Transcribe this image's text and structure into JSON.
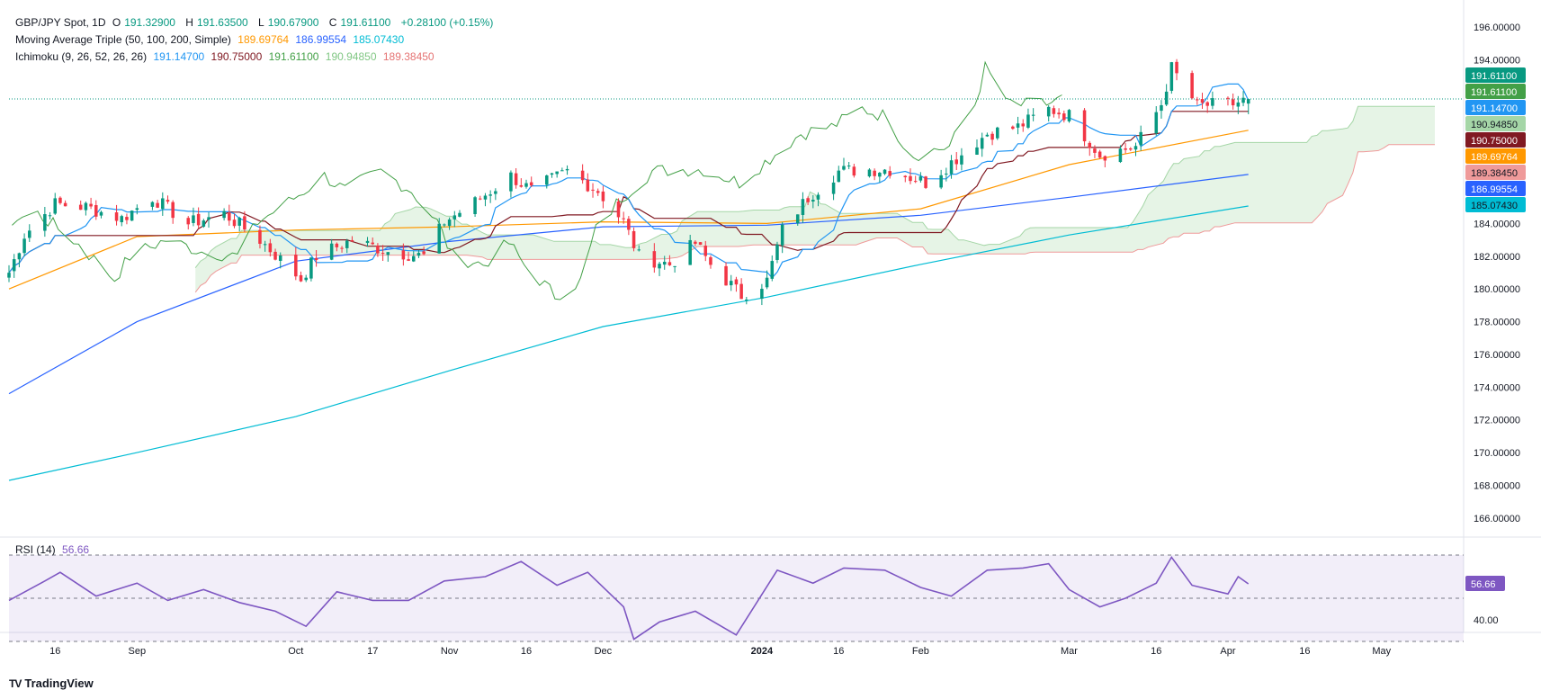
{
  "legend": {
    "symbol": "GBP/JPY Spot, 1D",
    "open_label": "O",
    "open": "191.32900",
    "high_label": "H",
    "high": "191.63500",
    "low_label": "L",
    "low": "190.67900",
    "close_label": "C",
    "close": "191.61100",
    "change": "+0.28100 (+0.15%)",
    "ma_title": "Moving Average Triple (50, 100, 200, Simple)",
    "ma50": "189.69764",
    "ma100": "186.99554",
    "ma200": "185.07430",
    "ich_title": "Ichimoku (9, 26, 52, 26, 26)",
    "ich_conv": "191.14700",
    "ich_base": "190.75000",
    "ich_lag": "191.61100",
    "ich_spanA": "190.94850",
    "ich_spanB": "189.38450",
    "rsi_title": "RSI (14)",
    "rsi_value": "56.66"
  },
  "colors": {
    "up": "#089981",
    "down": "#f23645",
    "ma50": "#ff9800",
    "ma100": "#2962ff",
    "ma200": "#00bcd4",
    "conv": "#2196f3",
    "base": "#801922",
    "lag": "#43a047",
    "spanA": "#a5d6a7",
    "spanB": "#ef9a9a",
    "rsi": "#7e57c2"
  },
  "brand": {
    "name": "TradingView",
    "logo": "TV"
  },
  "chart_data": [
    {
      "type": "candlestick",
      "title": "GBP/JPY Spot, 1D",
      "ylim": [
        165.0,
        197.0
      ],
      "y_ticks": [
        "196.00000",
        "194.00000",
        "192.00000",
        "190.00000",
        "188.00000",
        "186.00000",
        "184.00000",
        "182.00000",
        "180.00000",
        "178.00000",
        "176.00000",
        "174.00000",
        "172.00000",
        "170.00000",
        "168.00000",
        "166.00000"
      ],
      "x_ticks": [
        {
          "label": "16",
          "date": "2023-08-16"
        },
        {
          "label": "Sep",
          "date": "2023-09-01"
        },
        {
          "label": "Oct",
          "date": "2023-10-02"
        },
        {
          "label": "17",
          "date": "2023-10-17"
        },
        {
          "label": "Nov",
          "date": "2023-11-01"
        },
        {
          "label": "16",
          "date": "2023-11-16"
        },
        {
          "label": "Dec",
          "date": "2023-12-01"
        },
        {
          "label": "2024",
          "date": "2024-01-01"
        },
        {
          "label": "16",
          "date": "2024-01-16"
        },
        {
          "label": "Feb",
          "date": "2024-02-01"
        },
        {
          "label": "Mar",
          "date": "2024-03-01"
        },
        {
          "label": "16",
          "date": "2024-03-18"
        },
        {
          "label": "Apr",
          "date": "2024-04-01"
        },
        {
          "label": "16",
          "date": "2024-04-16"
        },
        {
          "label": "May",
          "date": "2024-05-01"
        }
      ],
      "close_anchors": [
        [
          "2023-08-07",
          181.0
        ],
        [
          "2023-08-10",
          183.3
        ],
        [
          "2023-08-16",
          185.2
        ],
        [
          "2023-08-22",
          185.0
        ],
        [
          "2023-08-29",
          184.3
        ],
        [
          "2023-09-04",
          185.6
        ],
        [
          "2023-09-11",
          184.0
        ],
        [
          "2023-09-18",
          184.6
        ],
        [
          "2023-09-25",
          183.0
        ],
        [
          "2023-09-29",
          181.8
        ],
        [
          "2023-10-03",
          180.6
        ],
        [
          "2023-10-06",
          182.0
        ],
        [
          "2023-10-13",
          183.0
        ],
        [
          "2023-10-20",
          182.3
        ],
        [
          "2023-10-27",
          182.0
        ],
        [
          "2023-10-31",
          184.1
        ],
        [
          "2023-11-06",
          185.3
        ],
        [
          "2023-11-13",
          186.9
        ],
        [
          "2023-11-17",
          186.0
        ],
        [
          "2023-11-24",
          187.2
        ],
        [
          "2023-11-30",
          186.0
        ],
        [
          "2023-12-05",
          184.1
        ],
        [
          "2023-12-08",
          182.0
        ],
        [
          "2023-12-14",
          181.5
        ],
        [
          "2023-12-19",
          182.8
        ],
        [
          "2023-12-22",
          181.5
        ],
        [
          "2023-12-28",
          179.6
        ],
        [
          "2024-01-02",
          180.5
        ],
        [
          "2024-01-05",
          183.6
        ],
        [
          "2024-01-10",
          185.6
        ],
        [
          "2024-01-16",
          187.2
        ],
        [
          "2024-01-22",
          187.3
        ],
        [
          "2024-01-26",
          187.3
        ],
        [
          "2024-02-02",
          186.5
        ],
        [
          "2024-02-08",
          188.0
        ],
        [
          "2024-02-14",
          189.5
        ],
        [
          "2024-02-20",
          189.9
        ],
        [
          "2024-02-26",
          191.0
        ],
        [
          "2024-03-01",
          190.6
        ],
        [
          "2024-03-07",
          188.2
        ],
        [
          "2024-03-14",
          188.7
        ],
        [
          "2024-03-19",
          191.3
        ],
        [
          "2024-03-21",
          193.5
        ],
        [
          "2024-03-26",
          191.2
        ],
        [
          "2024-04-02",
          191.3
        ],
        [
          "2024-04-05",
          191.6
        ]
      ],
      "last_ohlc": {
        "open": 191.329,
        "high": 191.635,
        "low": 190.679,
        "close": 191.611
      },
      "series": [
        {
          "name": "MA 50",
          "value": 189.69764,
          "points": [
            [
              "2023-08-07",
              180.0
            ],
            [
              "2023-09-01",
              183.2
            ],
            [
              "2023-10-02",
              183.6
            ],
            [
              "2023-11-01",
              183.8
            ],
            [
              "2023-12-01",
              184.1
            ],
            [
              "2024-01-02",
              184.0
            ],
            [
              "2024-02-01",
              184.9
            ],
            [
              "2024-03-01",
              187.6
            ],
            [
              "2024-04-05",
              189.7
            ]
          ]
        },
        {
          "name": "MA 100",
          "value": 186.99554,
          "points": [
            [
              "2023-08-07",
              173.6
            ],
            [
              "2023-09-01",
              178.0
            ],
            [
              "2023-10-02",
              181.7
            ],
            [
              "2023-11-01",
              182.9
            ],
            [
              "2023-12-01",
              183.8
            ],
            [
              "2024-01-02",
              183.9
            ],
            [
              "2024-02-01",
              184.5
            ],
            [
              "2024-03-01",
              185.6
            ],
            [
              "2024-04-05",
              187.0
            ]
          ]
        },
        {
          "name": "MA 200",
          "value": 185.0743,
          "points": [
            [
              "2023-08-07",
              168.3
            ],
            [
              "2023-09-01",
              170.0
            ],
            [
              "2023-10-02",
              172.2
            ],
            [
              "2023-11-01",
              175.0
            ],
            [
              "2023-12-01",
              177.7
            ],
            [
              "2024-01-02",
              179.5
            ],
            [
              "2024-02-01",
              181.5
            ],
            [
              "2024-03-01",
              183.3
            ],
            [
              "2024-04-05",
              185.07
            ]
          ]
        },
        {
          "name": "Conversion",
          "value": 191.147
        },
        {
          "name": "Base",
          "value": 190.75
        },
        {
          "name": "Lagging",
          "value": 191.611
        },
        {
          "name": "Span A",
          "value": 190.9485
        },
        {
          "name": "Span B",
          "value": 189.3845
        }
      ]
    },
    {
      "type": "line",
      "title": "RSI (14)",
      "ylim": [
        35,
        75
      ],
      "y_ticks": [
        "40.00"
      ],
      "levels": [
        70,
        50,
        30
      ],
      "last_value": 56.66,
      "points": [
        [
          "2023-08-07",
          49
        ],
        [
          "2023-08-14",
          58
        ],
        [
          "2023-08-17",
          62
        ],
        [
          "2023-08-24",
          51
        ],
        [
          "2023-09-01",
          57
        ],
        [
          "2023-09-07",
          49
        ],
        [
          "2023-09-14",
          54
        ],
        [
          "2023-09-21",
          48
        ],
        [
          "2023-09-28",
          44
        ],
        [
          "2023-10-04",
          37
        ],
        [
          "2023-10-10",
          53
        ],
        [
          "2023-10-17",
          49
        ],
        [
          "2023-10-24",
          49
        ],
        [
          "2023-10-31",
          58
        ],
        [
          "2023-11-08",
          60
        ],
        [
          "2023-11-15",
          67
        ],
        [
          "2023-11-22",
          56
        ],
        [
          "2023-11-28",
          62
        ],
        [
          "2023-12-05",
          46
        ],
        [
          "2023-12-07",
          31
        ],
        [
          "2023-12-12",
          39
        ],
        [
          "2023-12-19",
          44
        ],
        [
          "2023-12-27",
          33
        ],
        [
          "2024-01-04",
          63
        ],
        [
          "2024-01-11",
          57
        ],
        [
          "2024-01-17",
          64
        ],
        [
          "2024-01-25",
          63
        ],
        [
          "2024-02-01",
          55
        ],
        [
          "2024-02-07",
          51
        ],
        [
          "2024-02-14",
          63
        ],
        [
          "2024-02-21",
          64
        ],
        [
          "2024-02-26",
          66
        ],
        [
          "2024-03-01",
          54
        ],
        [
          "2024-03-07",
          46
        ],
        [
          "2024-03-12",
          50
        ],
        [
          "2024-03-18",
          57
        ],
        [
          "2024-03-21",
          69
        ],
        [
          "2024-03-25",
          56
        ],
        [
          "2024-04-01",
          52
        ],
        [
          "2024-04-03",
          60
        ],
        [
          "2024-04-05",
          56.66
        ]
      ]
    }
  ]
}
